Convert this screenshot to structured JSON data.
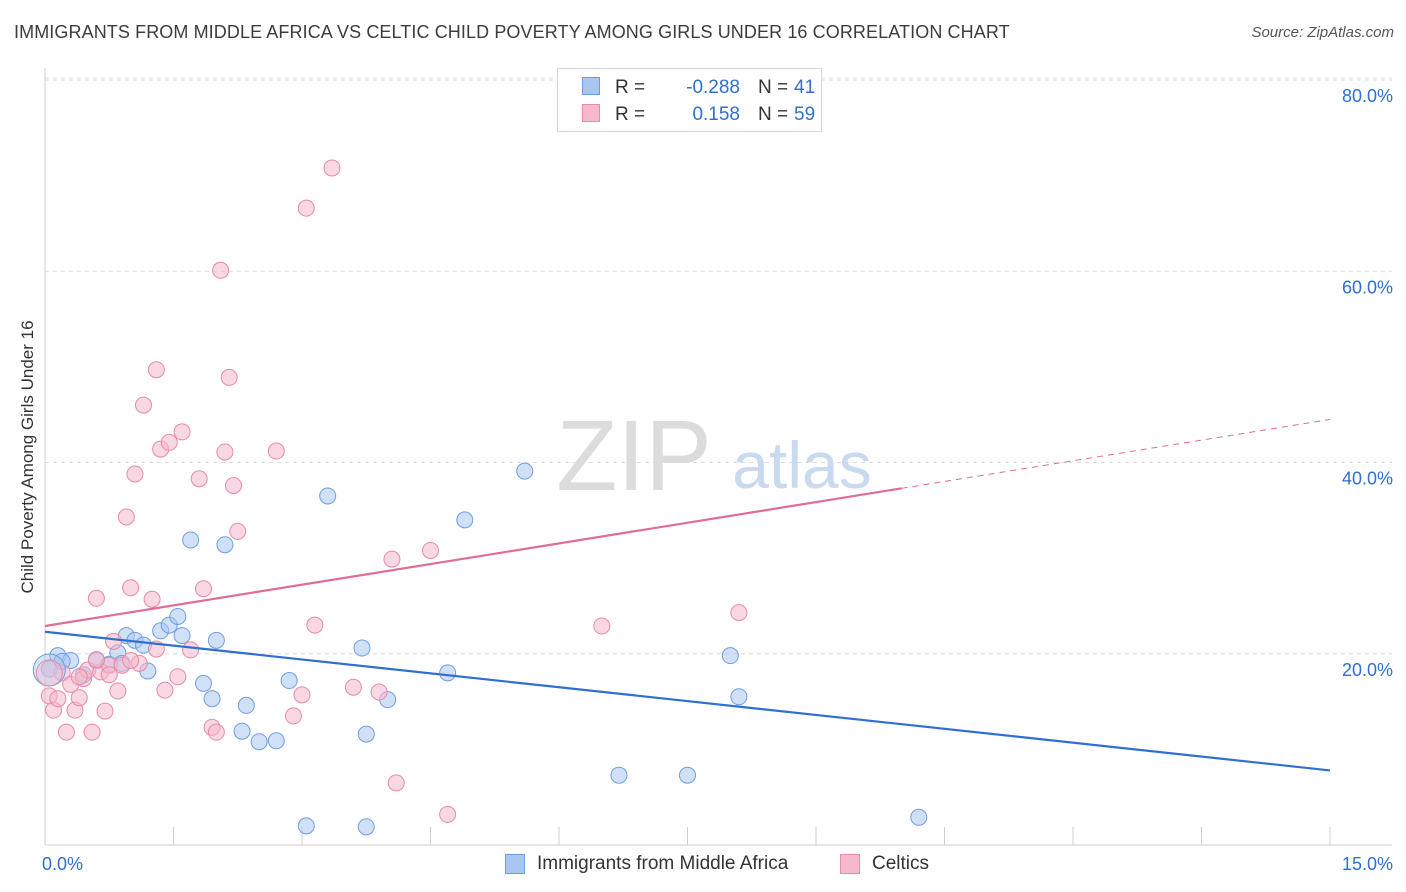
{
  "header": {
    "title": "IMMIGRANTS FROM MIDDLE AFRICA VS CELTIC CHILD POVERTY AMONG GIRLS UNDER 16 CORRELATION CHART",
    "source": "Source: ZipAtlas.com"
  },
  "watermark": {
    "zip": "ZIP",
    "atlas": "atlas"
  },
  "legend": {
    "r_label": "R =",
    "n_label": "N =",
    "rows": [
      {
        "r_value": "-0.288",
        "n_value": "41"
      },
      {
        "r_value": "0.158",
        "n_value": "59"
      }
    ]
  },
  "colors": {
    "blue_fill": "#a9c6f0",
    "blue_stroke": "#6f9ee0",
    "blue_line": "#2f6fd1",
    "pink_fill": "#f5b8cc",
    "pink_stroke": "#e88aa8",
    "pink_line": "#e06c97",
    "axis_value": "#2f6fd1",
    "grid": "#dcdcdc"
  },
  "chart_data": {
    "type": "scatter",
    "title": "IMMIGRANTS FROM MIDDLE AFRICA VS CELTIC CHILD POVERTY AMONG GIRLS UNDER 16 CORRELATION CHART",
    "xlabel": "",
    "ylabel": "Child Poverty Among Girls Under 16",
    "xlim": [
      0,
      15
    ],
    "ylim": [
      0,
      80
    ],
    "x_tick_labels": [
      "0.0%",
      "15.0%"
    ],
    "y_ticks": [
      20,
      40,
      60,
      80
    ],
    "y_tick_labels": [
      "20.0%",
      "40.0%",
      "60.0%",
      "80.0%"
    ],
    "grid": true,
    "legend_position": "top-center",
    "series": [
      {
        "name": "Immigrants from Middle Africa",
        "color": "#a9c6f0",
        "r": -0.288,
        "n": 41,
        "trend": {
          "x": [
            0,
            15
          ],
          "y": [
            22.3,
            7.8
          ],
          "dashed_from": null
        },
        "points": [
          [
            0.05,
            18.4
          ],
          [
            0.15,
            19.8
          ],
          [
            0.3,
            19.3
          ],
          [
            0.45,
            17.8
          ],
          [
            0.6,
            19.3
          ],
          [
            0.75,
            18.9
          ],
          [
            0.85,
            20.1
          ],
          [
            0.95,
            21.9
          ],
          [
            1.05,
            21.4
          ],
          [
            1.15,
            20.9
          ],
          [
            1.35,
            22.4
          ],
          [
            1.45,
            23.0
          ],
          [
            1.55,
            23.9
          ],
          [
            1.6,
            21.9
          ],
          [
            1.7,
            31.9
          ],
          [
            1.85,
            16.9
          ],
          [
            1.95,
            15.3
          ],
          [
            2.0,
            21.4
          ],
          [
            2.1,
            31.4
          ],
          [
            2.3,
            11.9
          ],
          [
            2.35,
            14.6
          ],
          [
            2.5,
            10.8
          ],
          [
            2.7,
            10.9
          ],
          [
            2.85,
            17.2
          ],
          [
            3.05,
            2.0
          ],
          [
            3.3,
            36.5
          ],
          [
            3.7,
            20.6
          ],
          [
            3.75,
            11.6
          ],
          [
            3.75,
            1.9
          ],
          [
            4.0,
            15.2
          ],
          [
            4.7,
            18.0
          ],
          [
            4.9,
            34.0
          ],
          [
            5.6,
            39.1
          ],
          [
            6.7,
            7.3
          ],
          [
            7.5,
            7.3
          ],
          [
            8.0,
            19.8
          ],
          [
            8.1,
            15.5
          ],
          [
            10.2,
            2.9
          ],
          [
            0.2,
            19.2
          ],
          [
            0.9,
            19.0
          ],
          [
            1.2,
            18.2
          ]
        ]
      },
      {
        "name": "Celtics",
        "color": "#f5b8cc",
        "r": 0.158,
        "n": 59,
        "trend": {
          "x": [
            0,
            15
          ],
          "y": [
            22.9,
            44.5
          ],
          "dashed_from": 10.0
        },
        "points": [
          [
            0.05,
            15.6
          ],
          [
            0.1,
            14.1
          ],
          [
            0.15,
            15.3
          ],
          [
            0.2,
            18.0
          ],
          [
            0.25,
            11.8
          ],
          [
            0.3,
            16.8
          ],
          [
            0.35,
            14.1
          ],
          [
            0.4,
            15.4
          ],
          [
            0.45,
            17.4
          ],
          [
            0.5,
            18.3
          ],
          [
            0.55,
            11.8
          ],
          [
            0.6,
            25.8
          ],
          [
            0.65,
            18.1
          ],
          [
            0.7,
            14.0
          ],
          [
            0.75,
            18.8
          ],
          [
            0.8,
            21.3
          ],
          [
            0.85,
            16.1
          ],
          [
            0.9,
            18.8
          ],
          [
            0.95,
            34.3
          ],
          [
            1.0,
            26.9
          ],
          [
            1.05,
            38.8
          ],
          [
            1.1,
            19.0
          ],
          [
            1.15,
            46.0
          ],
          [
            1.25,
            25.7
          ],
          [
            1.3,
            49.7
          ],
          [
            1.35,
            41.4
          ],
          [
            1.4,
            16.2
          ],
          [
            1.45,
            42.1
          ],
          [
            1.55,
            17.6
          ],
          [
            1.6,
            43.2
          ],
          [
            1.7,
            20.4
          ],
          [
            1.8,
            38.3
          ],
          [
            1.85,
            26.8
          ],
          [
            1.95,
            12.3
          ],
          [
            2.0,
            11.8
          ],
          [
            2.05,
            60.1
          ],
          [
            2.1,
            41.1
          ],
          [
            2.15,
            48.9
          ],
          [
            2.2,
            37.6
          ],
          [
            2.25,
            32.8
          ],
          [
            2.7,
            41.2
          ],
          [
            2.9,
            13.5
          ],
          [
            3.0,
            15.7
          ],
          [
            3.05,
            66.6
          ],
          [
            3.15,
            23.0
          ],
          [
            3.35,
            70.8
          ],
          [
            3.6,
            16.5
          ],
          [
            3.9,
            16.0
          ],
          [
            4.05,
            29.9
          ],
          [
            4.1,
            6.5
          ],
          [
            4.5,
            30.8
          ],
          [
            4.7,
            3.2
          ],
          [
            6.5,
            22.9
          ],
          [
            8.1,
            24.3
          ],
          [
            1.3,
            20.5
          ],
          [
            0.6,
            19.4
          ],
          [
            1.0,
            19.3
          ],
          [
            0.4,
            17.6
          ],
          [
            0.75,
            17.8
          ]
        ]
      }
    ]
  },
  "bottom_legend": {
    "items": [
      {
        "label": "Immigrants from Middle Africa"
      },
      {
        "label": "Celtics"
      }
    ]
  }
}
